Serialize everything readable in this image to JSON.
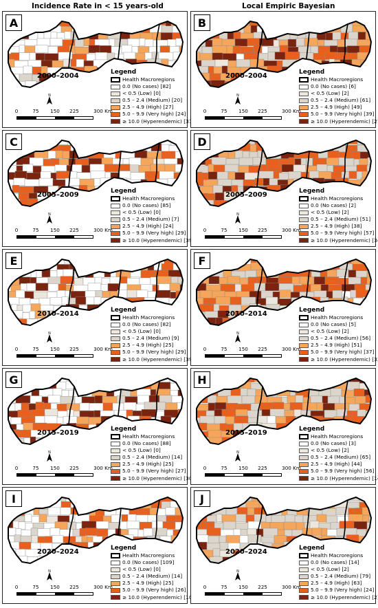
{
  "column_titles": [
    "Incidence Rate in < 15 years-old",
    "Local Empiric Bayesian"
  ],
  "legend": {
    "title": "Legend",
    "macro_label": "Health Macroregions",
    "class_labels": [
      "0.0 (No cases)",
      "< 0.5 (Low)",
      "0.5 – 2.4 (Medium)",
      "2.5 – 4.9 (High)",
      "5.0 – 9.9 (Very high)",
      "≥ 10.0 (Hyperendemic)"
    ],
    "class_colors": [
      "#ffffff",
      "#ede6dc",
      "#dcd5cb",
      "#f5a65a",
      "#e8601e",
      "#7a230e"
    ]
  },
  "scale_labels": [
    "0",
    "75",
    "150",
    "225",
    "300 Km"
  ],
  "north_label": "N",
  "panels": [
    {
      "letter": "A",
      "period": "2000–2004",
      "counts": [
        82,
        0,
        20,
        27,
        24,
        31
      ]
    },
    {
      "letter": "B",
      "period": "2000–2004",
      "counts": [
        6,
        2,
        61,
        49,
        39,
        27
      ]
    },
    {
      "letter": "C",
      "period": "2005–2009",
      "counts": [
        85,
        0,
        7,
        24,
        29,
        39
      ]
    },
    {
      "letter": "D",
      "period": "2005–2009",
      "counts": [
        2,
        2,
        51,
        38,
        57,
        34
      ]
    },
    {
      "letter": "E",
      "period": "2010–2014",
      "counts": [
        82,
        0,
        9,
        25,
        29,
        39
      ]
    },
    {
      "letter": "F",
      "period": "2010–2014",
      "counts": [
        5,
        2,
        56,
        51,
        37,
        33
      ]
    },
    {
      "letter": "G",
      "period": "2015–2019",
      "counts": [
        88,
        0,
        14,
        25,
        27,
        30
      ]
    },
    {
      "letter": "H",
      "period": "2015–2019",
      "counts": [
        3,
        2,
        65,
        44,
        56,
        14
      ]
    },
    {
      "letter": "I",
      "period": "2020–2024",
      "counts": [
        109,
        0,
        14,
        25,
        26,
        10
      ]
    },
    {
      "letter": "J",
      "period": "2020–2024",
      "counts": [
        14,
        2,
        79,
        63,
        24,
        2
      ]
    }
  ]
}
